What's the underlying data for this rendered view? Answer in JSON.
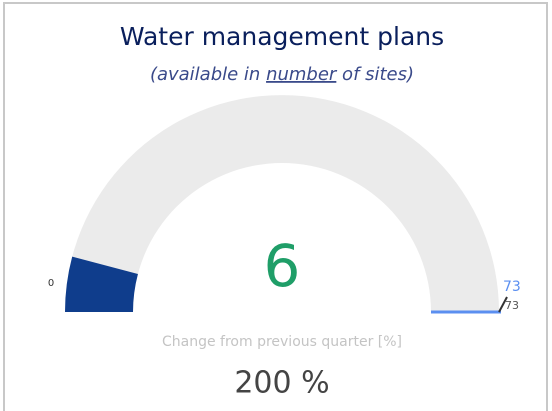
{
  "chart_data": {
    "type": "gauge",
    "title": "Water management plans",
    "subtitle_parts": [
      "(available in ",
      "number",
      " of sites)"
    ],
    "value": 6,
    "min": 0,
    "max": 73,
    "target": 73,
    "color": "#0f3d8c",
    "track_color": "#ebebeb",
    "target_color": "#5b8ff0",
    "value_color": "#1f9e68",
    "change_label": "Change from previous quarter [%]",
    "change_text": "200 %"
  }
}
